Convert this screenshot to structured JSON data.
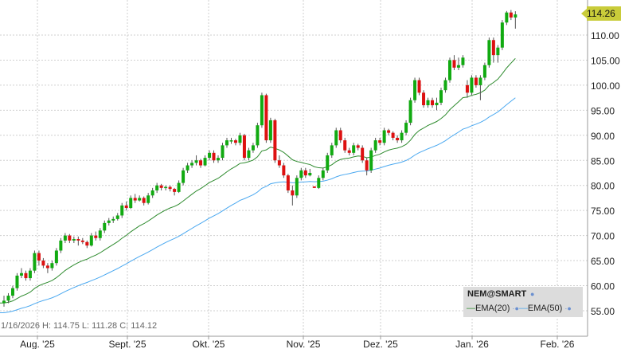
{
  "chart_data": {
    "type": "candlestick",
    "symbol": "NEM@SMART",
    "legend": {
      "placement": "bottom-right",
      "entries": [
        "EMA(20)",
        "EMA(50)"
      ]
    },
    "colors": {
      "up": "#11aa11",
      "down": "#dd1111",
      "ema20": "#2e8b2e",
      "ema50": "#4aa8f0",
      "price_tag": "#c9cc3a"
    },
    "last_price": "114.26",
    "status_line": "1/16/2026 H: 114.75 L: 111.28 C: 114.12",
    "y_ticks": [
      "55.00",
      "60.00",
      "65.00",
      "70.00",
      "75.00",
      "80.00",
      "85.00",
      "90.00",
      "95.00",
      "100.00",
      "105.00",
      "110.00"
    ],
    "y_tick_values": [
      55,
      60,
      65,
      70,
      75,
      80,
      85,
      90,
      95,
      100,
      105,
      110
    ],
    "ylim": [
      49.9,
      117
    ],
    "x_ticks": [
      "Aug. '25",
      "Sept. '25",
      "Okt. '25",
      "Nov. '25",
      "Dez. '25",
      "Jan. '26",
      "Feb. '26"
    ],
    "grid": true,
    "candles_ohlc": [
      [
        56.5,
        58,
        55.8,
        57
      ],
      [
        57,
        58.5,
        56.5,
        58
      ],
      [
        58,
        60,
        57.5,
        59.5
      ],
      [
        59.5,
        62.5,
        59,
        62
      ],
      [
        62,
        63.5,
        61.5,
        62.5
      ],
      [
        62.5,
        63,
        61,
        61.5
      ],
      [
        61.5,
        63.5,
        61,
        63
      ],
      [
        63,
        67,
        62.5,
        66.5
      ],
      [
        66.5,
        67,
        64,
        65
      ],
      [
        65,
        65.5,
        63.5,
        64
      ],
      [
        64,
        64.5,
        62.5,
        63.5
      ],
      [
        63.5,
        65,
        63,
        64.5
      ],
      [
        64.5,
        67.5,
        64,
        67
      ],
      [
        67,
        69.5,
        66.5,
        69
      ],
      [
        69,
        70.5,
        68.5,
        70
      ],
      [
        70,
        70.3,
        68.5,
        69
      ],
      [
        69,
        69.8,
        68.5,
        69.3
      ],
      [
        69.3,
        69.8,
        68,
        69
      ],
      [
        69,
        69.5,
        68.3,
        68.7
      ],
      [
        68.7,
        69,
        67.5,
        68
      ],
      [
        68,
        70.5,
        67.8,
        70
      ],
      [
        70,
        70.8,
        69,
        69.5
      ],
      [
        69.5,
        71.5,
        69,
        71
      ],
      [
        71,
        73,
        70.5,
        72.5
      ],
      [
        72.5,
        73.5,
        72,
        73
      ],
      [
        73,
        73.8,
        72.5,
        73.3
      ],
      [
        73.3,
        74.5,
        73,
        74
      ],
      [
        74,
        76.5,
        73.5,
        76
      ],
      [
        76,
        76.8,
        75,
        75.5
      ],
      [
        75.5,
        78,
        75.3,
        77.5
      ],
      [
        77.5,
        78.3,
        76.5,
        77
      ],
      [
        77,
        78,
        76.8,
        77.5
      ],
      [
        77.5,
        77.8,
        76,
        76.5
      ],
      [
        76.5,
        78.5,
        76.2,
        78
      ],
      [
        78,
        79.5,
        77.5,
        79
      ],
      [
        79,
        80.5,
        78.5,
        80
      ],
      [
        80,
        80.3,
        79,
        79.5
      ],
      [
        79.5,
        80,
        79,
        79.7
      ],
      [
        79.7,
        80,
        78.8,
        79.3
      ],
      [
        79.3,
        79.5,
        78,
        78.7
      ],
      [
        78.7,
        81,
        78.5,
        80.5
      ],
      [
        80.5,
        83.5,
        80,
        83
      ],
      [
        83,
        84.5,
        82.5,
        84
      ],
      [
        84,
        85,
        83.5,
        84.5
      ],
      [
        84.5,
        86,
        84,
        85
      ],
      [
        85,
        85.3,
        83.5,
        84
      ],
      [
        84,
        86,
        83.8,
        85.5
      ],
      [
        85.5,
        87,
        85,
        86.5
      ],
      [
        86.5,
        87,
        84.5,
        85
      ],
      [
        85,
        86,
        84.5,
        85.5
      ],
      [
        85.5,
        88.5,
        85,
        88
      ],
      [
        88,
        89.5,
        87.5,
        89
      ],
      [
        89,
        89.5,
        88.3,
        89
      ],
      [
        89,
        89.3,
        88,
        88.5
      ],
      [
        88.5,
        90.5,
        88,
        90
      ],
      [
        90,
        90.3,
        85,
        85.5
      ],
      [
        85.5,
        87.5,
        85,
        87
      ],
      [
        87,
        88.5,
        86.5,
        88
      ],
      [
        88,
        92.5,
        87.5,
        92
      ],
      [
        92,
        98.5,
        91.5,
        98
      ],
      [
        98,
        98.3,
        88.5,
        89
      ],
      [
        89,
        93.5,
        88.5,
        93
      ],
      [
        93,
        93.3,
        84.5,
        85
      ],
      [
        85,
        86,
        83.5,
        84
      ],
      [
        84,
        84.5,
        81.5,
        82
      ],
      [
        82,
        82.3,
        78.5,
        79
      ],
      [
        79,
        80,
        76,
        78
      ],
      [
        78,
        82,
        77.5,
        81.5
      ],
      [
        81.5,
        83.5,
        81,
        83
      ],
      [
        83,
        83.5,
        81.5,
        82
      ],
      [
        82,
        83.3,
        81.8,
        82.5
      ],
      [
        79.8,
        79.8,
        79.5,
        79.5
      ],
      [
        79.5,
        82,
        79.3,
        81.5
      ],
      [
        81.5,
        83.5,
        81,
        83
      ],
      [
        83,
        86.5,
        82.5,
        86
      ],
      [
        86,
        88.5,
        85.5,
        88
      ],
      [
        88,
        91.5,
        87.5,
        91
      ],
      [
        91,
        91.5,
        88.5,
        89
      ],
      [
        89,
        89.5,
        86.5,
        87
      ],
      [
        87,
        87.5,
        86,
        86.5
      ],
      [
        86.5,
        88.5,
        86,
        88
      ],
      [
        88,
        88.3,
        87,
        87.5
      ],
      [
        87.5,
        88,
        84.5,
        85
      ],
      [
        85,
        85.5,
        82,
        83
      ],
      [
        83,
        87.5,
        82.5,
        87
      ],
      [
        87,
        89.5,
        86.5,
        89
      ],
      [
        89,
        89.5,
        88,
        88.5
      ],
      [
        88.5,
        91.5,
        88,
        91
      ],
      [
        91,
        91.3,
        90,
        90.5
      ],
      [
        90.5,
        90.8,
        89,
        89.5
      ],
      [
        89.5,
        90,
        88.5,
        89
      ],
      [
        89,
        91,
        88.5,
        90.5
      ],
      [
        90.5,
        93,
        90,
        92.5
      ],
      [
        92.5,
        97.5,
        92,
        97
      ],
      [
        97,
        101.5,
        96.5,
        101
      ],
      [
        101,
        101.5,
        98,
        98.5
      ],
      [
        98.5,
        99,
        95.5,
        96
      ],
      [
        96,
        97.5,
        95.5,
        97
      ],
      [
        97,
        97.5,
        95.5,
        96
      ],
      [
        96,
        97.5,
        95,
        96.5
      ],
      [
        96.5,
        99.5,
        96,
        99
      ],
      [
        99,
        101.5,
        98.5,
        101
      ],
      [
        101,
        105.5,
        100.5,
        105
      ],
      [
        105,
        106,
        103,
        103.5
      ],
      [
        103.5,
        105.5,
        103,
        104
      ],
      [
        104,
        106,
        103.5,
        105.5
      ],
      [
        100,
        101,
        97.5,
        98.5
      ],
      [
        98.5,
        102,
        98,
        101.5
      ],
      [
        101.5,
        102,
        99.5,
        100
      ],
      [
        100,
        102,
        97,
        101.5
      ],
      [
        101.5,
        104.5,
        101,
        104
      ],
      [
        104,
        109.5,
        103.5,
        109
      ],
      [
        109,
        109.5,
        104.5,
        106
      ],
      [
        106,
        108,
        104.5,
        107.5
      ],
      [
        107.5,
        113,
        107,
        112.5
      ],
      [
        112.5,
        114.8,
        112,
        114.5
      ],
      [
        114.5,
        115,
        113,
        113.5
      ],
      [
        113.5,
        114.75,
        111.28,
        114.12
      ]
    ]
  }
}
